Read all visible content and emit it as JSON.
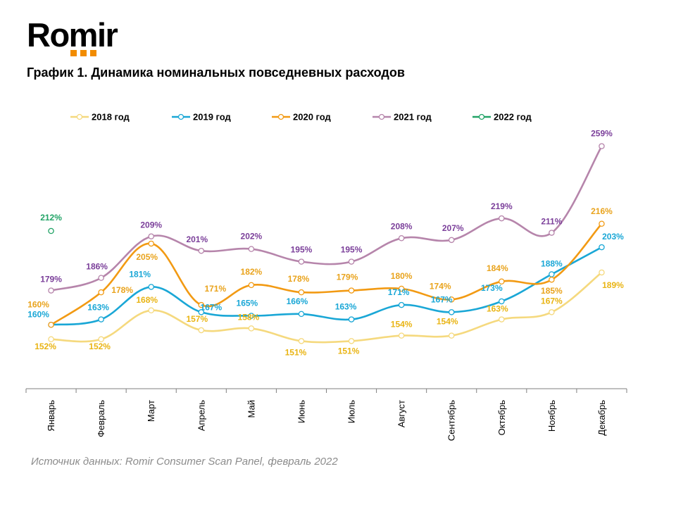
{
  "brand": {
    "name": "Romir",
    "accent": "#f28c00"
  },
  "source": "Источник данных: Romir Consumer Scan Panel, февраль 2022",
  "chart_data": {
    "type": "line",
    "title": "График 1. Динамика номинальных повседневных расходов",
    "xlabel": "",
    "ylabel": "",
    "ylim": [
      100,
      290
    ],
    "grid": false,
    "legend_position": "top",
    "categories": [
      "Январь",
      "Февраль",
      "Март",
      "Апрель",
      "Май",
      "Июнь",
      "Июль",
      "Август",
      "Сентябрь",
      "Октябрь",
      "Ноябрь",
      "Декабрь"
    ],
    "series": [
      {
        "name": "2018 год",
        "color": "#f5d97e",
        "label_color": "#e9b413",
        "values": [
          152,
          152,
          168,
          157,
          158,
          151,
          151,
          154,
          154,
          163,
          167,
          189
        ],
        "labels": [
          "152%",
          "152%",
          "168%",
          "157%",
          "158%",
          "151%",
          "151%",
          "154%",
          "154%",
          "163%",
          "167%",
          "189%"
        ]
      },
      {
        "name": "2019 год",
        "color": "#1aa7d6",
        "label_color": "#1aa7d6",
        "values": [
          160,
          163,
          181,
          167,
          165,
          166,
          163,
          171,
          167,
          173,
          188,
          203
        ],
        "labels": [
          "160%",
          "163%",
          "181%",
          "167%",
          "165%",
          "166%",
          "163%",
          "171%",
          "167%",
          "173%",
          "188%",
          "203%"
        ]
      },
      {
        "name": "2020 год",
        "color": "#f29a13",
        "label_color": "#e9a31c",
        "values": [
          160,
          178,
          205,
          171,
          182,
          178,
          179,
          180,
          174,
          184,
          185,
          216
        ],
        "labels": [
          "160%",
          "178%",
          "205%",
          "171%",
          "182%",
          "178%",
          "179%",
          "180%",
          "174%",
          "184%",
          "185%",
          "216%"
        ]
      },
      {
        "name": "2021 год",
        "color": "#b685ab",
        "label_color": "#7b3f9a",
        "values": [
          179,
          186,
          209,
          201,
          202,
          195,
          195,
          208,
          207,
          219,
          211,
          259
        ],
        "labels": [
          "179%",
          "186%",
          "209%",
          "201%",
          "202%",
          "195%",
          "195%",
          "208%",
          "207%",
          "219%",
          "211%",
          "259%"
        ]
      },
      {
        "name": "2022 год",
        "color": "#21a366",
        "label_color": "#21a366",
        "values": [
          212,
          null,
          null,
          null,
          null,
          null,
          null,
          null,
          null,
          null,
          null,
          null
        ],
        "labels": [
          "212%",
          "",
          "",
          "",
          "",
          "",
          "",
          "",
          "",
          "",
          "",
          ""
        ]
      }
    ]
  }
}
